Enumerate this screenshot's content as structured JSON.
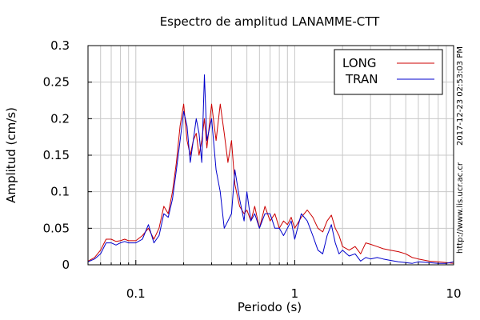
{
  "chart_data": {
    "type": "line",
    "title": "Espectro de amplitud LANAMME-CTT",
    "xlabel": "Periodo (s)",
    "ylabel": "Amplitud (cm/s)",
    "x_scale": "log",
    "xlim": [
      0.05,
      10
    ],
    "ylim": [
      0,
      0.3
    ],
    "grid": true,
    "legend_position": "top-right",
    "x_ticks": [
      0.1,
      1,
      10
    ],
    "x_tick_labels": [
      "0.1",
      "1",
      "10"
    ],
    "y_ticks": [
      0,
      0.05,
      0.1,
      0.15,
      0.2,
      0.25,
      0.3
    ],
    "y_tick_labels": [
      "0",
      "0.05",
      "0.1",
      "0.15",
      "0.2",
      "0.25",
      "0.3"
    ],
    "timestamp": "2017-12-23 02:53:03 PM",
    "source_url": "http://www.lis.ucr.ac.cr",
    "series": [
      {
        "name": "LONG",
        "color": "#cc0000",
        "x": [
          0.05,
          0.055,
          0.06,
          0.065,
          0.07,
          0.075,
          0.08,
          0.085,
          0.09,
          0.1,
          0.11,
          0.12,
          0.13,
          0.14,
          0.15,
          0.16,
          0.17,
          0.18,
          0.19,
          0.2,
          0.21,
          0.22,
          0.23,
          0.24,
          0.25,
          0.26,
          0.27,
          0.28,
          0.3,
          0.32,
          0.34,
          0.36,
          0.38,
          0.4,
          0.42,
          0.45,
          0.48,
          0.5,
          0.53,
          0.56,
          0.6,
          0.65,
          0.7,
          0.75,
          0.8,
          0.85,
          0.9,
          0.95,
          1.0,
          1.1,
          1.2,
          1.3,
          1.4,
          1.5,
          1.6,
          1.7,
          1.8,
          1.9,
          2.0,
          2.2,
          2.4,
          2.6,
          2.8,
          3.0,
          3.3,
          3.6,
          4.0,
          4.5,
          5.0,
          5.5,
          6.0,
          7.0,
          8.0,
          9.0,
          10.0
        ],
        "y": [
          0.005,
          0.01,
          0.02,
          0.035,
          0.035,
          0.032,
          0.033,
          0.035,
          0.033,
          0.033,
          0.04,
          0.05,
          0.035,
          0.05,
          0.08,
          0.07,
          0.1,
          0.14,
          0.19,
          0.22,
          0.17,
          0.15,
          0.17,
          0.18,
          0.15,
          0.17,
          0.2,
          0.16,
          0.22,
          0.17,
          0.22,
          0.18,
          0.14,
          0.17,
          0.11,
          0.08,
          0.07,
          0.075,
          0.06,
          0.08,
          0.05,
          0.08,
          0.06,
          0.07,
          0.05,
          0.06,
          0.055,
          0.065,
          0.05,
          0.065,
          0.075,
          0.065,
          0.05,
          0.045,
          0.06,
          0.068,
          0.05,
          0.04,
          0.025,
          0.02,
          0.025,
          0.015,
          0.03,
          0.028,
          0.025,
          0.022,
          0.02,
          0.018,
          0.015,
          0.01,
          0.008,
          0.005,
          0.004,
          0.003,
          0.002
        ]
      },
      {
        "name": "TRAN",
        "color": "#0000cc",
        "x": [
          0.05,
          0.055,
          0.06,
          0.065,
          0.07,
          0.075,
          0.08,
          0.085,
          0.09,
          0.1,
          0.11,
          0.12,
          0.13,
          0.14,
          0.15,
          0.16,
          0.17,
          0.18,
          0.19,
          0.2,
          0.21,
          0.22,
          0.23,
          0.24,
          0.25,
          0.26,
          0.27,
          0.28,
          0.3,
          0.32,
          0.34,
          0.36,
          0.38,
          0.4,
          0.42,
          0.45,
          0.48,
          0.5,
          0.53,
          0.56,
          0.6,
          0.65,
          0.7,
          0.75,
          0.8,
          0.85,
          0.9,
          0.95,
          1.0,
          1.1,
          1.2,
          1.3,
          1.4,
          1.5,
          1.6,
          1.7,
          1.8,
          1.9,
          2.0,
          2.2,
          2.4,
          2.6,
          2.8,
          3.0,
          3.3,
          3.6,
          4.0,
          4.5,
          5.0,
          5.5,
          6.0,
          7.0,
          8.0,
          9.0,
          10.0
        ],
        "y": [
          0.004,
          0.008,
          0.015,
          0.03,
          0.03,
          0.027,
          0.03,
          0.032,
          0.03,
          0.03,
          0.035,
          0.055,
          0.03,
          0.04,
          0.07,
          0.065,
          0.09,
          0.13,
          0.17,
          0.21,
          0.19,
          0.14,
          0.17,
          0.2,
          0.18,
          0.14,
          0.26,
          0.17,
          0.2,
          0.13,
          0.1,
          0.05,
          0.06,
          0.07,
          0.13,
          0.09,
          0.06,
          0.1,
          0.06,
          0.07,
          0.05,
          0.07,
          0.07,
          0.05,
          0.05,
          0.04,
          0.05,
          0.06,
          0.035,
          0.07,
          0.06,
          0.04,
          0.02,
          0.015,
          0.04,
          0.055,
          0.03,
          0.015,
          0.02,
          0.012,
          0.015,
          0.005,
          0.01,
          0.008,
          0.01,
          0.008,
          0.006,
          0.004,
          0.003,
          0.002,
          0.004,
          0.003,
          0.002,
          0.002,
          0.004
        ]
      }
    ]
  }
}
